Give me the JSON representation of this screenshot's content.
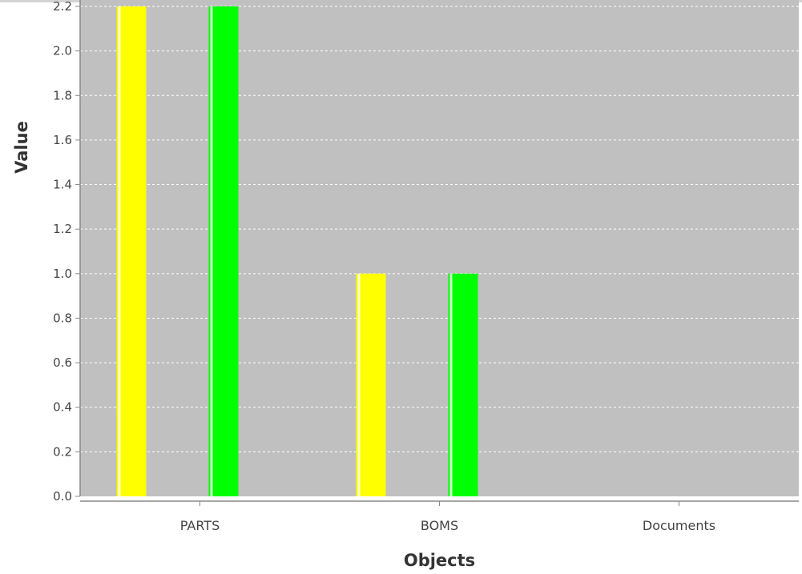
{
  "colors": {
    "plot_background": "#c0c0c0",
    "gridline": "#ffffff",
    "axis_line": "#888888",
    "series_1": "#ffff00",
    "series_1_highlight": "#ffffcc",
    "series_2": "#00ff00",
    "series_2_highlight": "#ccffcc"
  },
  "chart_data": {
    "type": "bar",
    "title": "",
    "xlabel": "Objects",
    "ylabel": "Value",
    "categories": [
      "PARTS",
      "BOMS",
      "Documents"
    ],
    "series": [
      {
        "values": [
          2.2,
          1.0,
          0.0
        ],
        "color": "#ffff00"
      },
      {
        "values": [
          2.2,
          1.0,
          0.0
        ],
        "color": "#00ff00"
      }
    ],
    "ylim": [
      0.0,
      2.2
    ],
    "yticks": [
      "0.0",
      "0.2",
      "0.4",
      "0.6",
      "0.8",
      "1.0",
      "1.2",
      "1.4",
      "1.6",
      "1.8",
      "2.0",
      "2.2"
    ],
    "grid": true,
    "legend": "none"
  }
}
